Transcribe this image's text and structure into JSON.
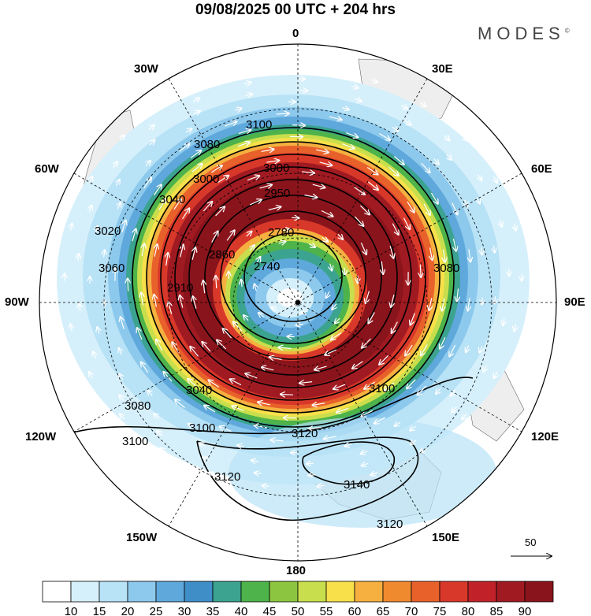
{
  "title": "09/08/2025  00 UTC  + 204 hrs",
  "logo": "MODES",
  "logo_mark": "©",
  "lon_labels": {
    "top": "0",
    "bottom": "180",
    "left": "90W",
    "right": "90E",
    "w30": "30W",
    "e30": "30E",
    "w60": "60W",
    "e60": "60E",
    "w120": "120W",
    "e120": "120E",
    "w150": "150W",
    "e150": "150E"
  },
  "contour_labels": [
    "2740",
    "2780",
    "2860",
    "2910",
    "2950",
    "3000",
    "3000",
    "3040",
    "3080",
    "3100",
    "3020",
    "3060",
    "3080",
    "3040",
    "3080",
    "3100",
    "3100",
    "3100",
    "3120",
    "3120",
    "3120",
    "3140"
  ],
  "wind_ref": "50",
  "colorbar": {
    "labels": [
      "10",
      "15",
      "20",
      "25",
      "30",
      "35",
      "40",
      "45",
      "50",
      "55",
      "60",
      "65",
      "70",
      "75",
      "80",
      "85",
      "90"
    ],
    "colors": [
      "#ffffff",
      "#d6f0fb",
      "#b8e2f6",
      "#8cc9ec",
      "#5fa8dc",
      "#3f8ec8",
      "#3ba38f",
      "#4db34a",
      "#8cc640",
      "#c9de4c",
      "#f7e04a",
      "#f5b040",
      "#ef8a2f",
      "#e8612b",
      "#d8382a",
      "#c1222a",
      "#a01a22",
      "#8a141b"
    ]
  },
  "icons": [
    "north-pole-marker-icon",
    "wind-vector-arrow-icon"
  ]
}
